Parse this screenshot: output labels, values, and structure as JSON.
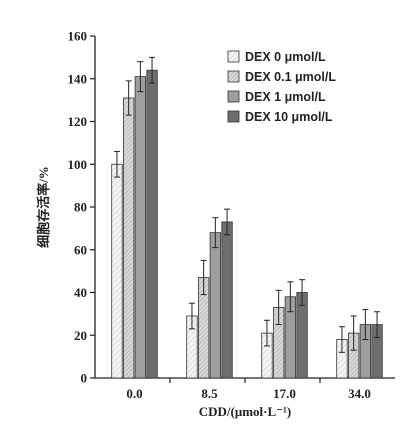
{
  "chart_data": {
    "type": "bar",
    "title": "",
    "xlabel": "CDD/(μmol·L⁻¹)",
    "ylabel": "细胞存活率/%",
    "categories": [
      "0.0",
      "8.5",
      "17.0",
      "34.0"
    ],
    "ylim": [
      0,
      160
    ],
    "yticks": [
      0,
      20,
      40,
      60,
      80,
      100,
      120,
      140,
      160
    ],
    "grid": false,
    "legend_position": "top-right",
    "series": [
      {
        "name": "DEX 0 μmol/L",
        "values": [
          100,
          29,
          21,
          18
        ],
        "errors": [
          6,
          6,
          6,
          6
        ],
        "color": "#f2f2f2",
        "pattern": "hatch-light"
      },
      {
        "name": "DEX 0.1 μmol/L",
        "values": [
          131,
          47,
          33,
          21
        ],
        "errors": [
          8,
          8,
          8,
          8
        ],
        "color": "#cfcfcf",
        "pattern": "hatch-dense"
      },
      {
        "name": "DEX 1 μmol/L",
        "values": [
          141,
          68,
          38,
          25
        ],
        "errors": [
          7,
          7,
          7,
          7
        ],
        "color": "#9e9e9e",
        "pattern": "solid"
      },
      {
        "name": "DEX 10 μmol/L",
        "values": [
          144,
          73,
          40,
          25
        ],
        "errors": [
          6,
          6,
          6,
          6
        ],
        "color": "#6e6e6e",
        "pattern": "solid"
      }
    ]
  }
}
